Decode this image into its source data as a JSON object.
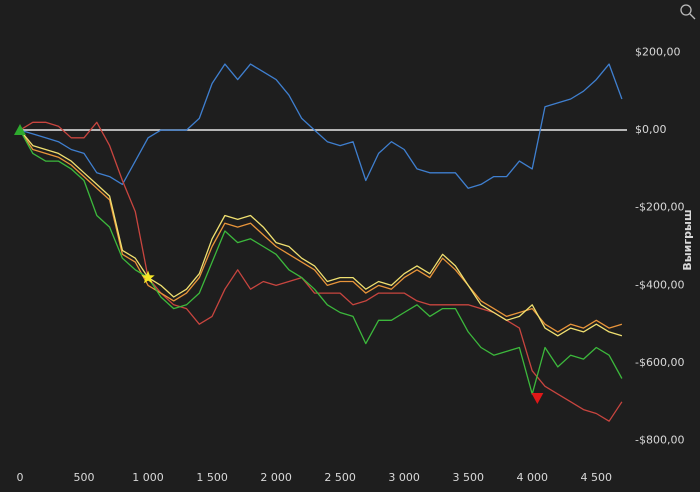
{
  "chart_data": {
    "type": "line",
    "y_label": "Выигрыш",
    "x": [
      0,
      100,
      200,
      300,
      400,
      500,
      600,
      700,
      800,
      900,
      1000,
      1100,
      1200,
      1300,
      1400,
      1500,
      1600,
      1700,
      1800,
      1900,
      2000,
      2100,
      2200,
      2300,
      2400,
      2500,
      2600,
      2700,
      2800,
      2900,
      3000,
      3100,
      3200,
      3300,
      3400,
      3500,
      3600,
      3700,
      3800,
      3900,
      4000,
      4100,
      4200,
      4300,
      4400,
      4500,
      4600,
      4700
    ],
    "series": [
      {
        "color": "#3f7fcf",
        "values": [
          0,
          -10,
          -20,
          -30,
          -50,
          -60,
          -110,
          -120,
          -140,
          -80,
          -20,
          0,
          0,
          0,
          30,
          120,
          170,
          130,
          170,
          150,
          130,
          90,
          30,
          0,
          -30,
          -40,
          -30,
          -130,
          -60,
          -30,
          -50,
          -100,
          -110,
          -110,
          -110,
          -150,
          -140,
          -120,
          -120,
          -80,
          -100,
          60,
          70,
          80,
          100,
          130,
          170,
          80
        ]
      },
      {
        "color": "#c8453f",
        "values": [
          0,
          20,
          20,
          10,
          -20,
          -20,
          20,
          -40,
          -130,
          -210,
          -380,
          -420,
          -450,
          -460,
          -500,
          -480,
          -410,
          -360,
          -410,
          -390,
          -400,
          -390,
          -380,
          -420,
          -420,
          -420,
          -450,
          -440,
          -420,
          -420,
          -420,
          -440,
          -450,
          -450,
          -450,
          -450,
          -460,
          -470,
          -490,
          -510,
          -620,
          -660,
          -680,
          -700,
          -720,
          -730,
          -750,
          -700
        ]
      },
      {
        "color": "#e8943a",
        "values": [
          0,
          -50,
          -60,
          -70,
          -90,
          -120,
          -150,
          -180,
          -320,
          -340,
          -400,
          -420,
          -440,
          -420,
          -380,
          -300,
          -240,
          -250,
          -240,
          -270,
          -300,
          -320,
          -340,
          -360,
          -400,
          -390,
          -390,
          -420,
          -400,
          -410,
          -380,
          -360,
          -380,
          -330,
          -360,
          -400,
          -440,
          -460,
          -480,
          -470,
          -460,
          -500,
          -520,
          -500,
          -510,
          -490,
          -510,
          -500
        ]
      },
      {
        "color": "#f0e070",
        "values": [
          0,
          -40,
          -50,
          -60,
          -80,
          -110,
          -140,
          -170,
          -310,
          -330,
          -380,
          -400,
          -430,
          -410,
          -370,
          -280,
          -220,
          -230,
          -220,
          -250,
          -290,
          -300,
          -330,
          -350,
          -390,
          -380,
          -380,
          -410,
          -390,
          -400,
          -370,
          -350,
          -370,
          -320,
          -350,
          -400,
          -450,
          -470,
          -490,
          -480,
          -450,
          -510,
          -530,
          -510,
          -520,
          -500,
          -520,
          -530
        ]
      },
      {
        "color": "#3cb83c",
        "values": [
          0,
          -60,
          -80,
          -80,
          -100,
          -130,
          -220,
          -250,
          -330,
          -360,
          -380,
          -430,
          -460,
          -450,
          -420,
          -340,
          -260,
          -290,
          -280,
          -300,
          -320,
          -360,
          -380,
          -410,
          -450,
          -470,
          -480,
          -550,
          -490,
          -490,
          -470,
          -450,
          -480,
          -460,
          -460,
          -520,
          -560,
          -580,
          -570,
          -560,
          -680,
          -560,
          -610,
          -580,
          -590,
          -560,
          -580,
          -640
        ]
      }
    ],
    "xlim": [
      0,
      4740
    ],
    "ylim": [
      -855,
      335
    ],
    "xticks": [
      0,
      500,
      {
        "value": 1000,
        "label": "1 000"
      },
      {
        "value": 1500,
        "label": "1 500"
      },
      {
        "value": 2000,
        "label": "2 000"
      },
      {
        "value": 2500,
        "label": "2 500"
      },
      {
        "value": 3000,
        "label": "3 000"
      },
      {
        "value": 3500,
        "label": "3 500"
      },
      {
        "value": 4000,
        "label": "4 000"
      },
      {
        "value": 4500,
        "label": "4 500"
      }
    ],
    "yticks": [
      {
        "value": 200,
        "label": "$200,00"
      },
      {
        "value": 0,
        "label": "$0,00"
      },
      {
        "value": -200,
        "label": "-$200,00"
      },
      {
        "value": -400,
        "label": "-$400,00"
      },
      {
        "value": -600,
        "label": "-$600,00"
      },
      {
        "value": -800,
        "label": "-$800,00"
      }
    ],
    "reference_line": 0,
    "markers": [
      {
        "x": 0,
        "y": 0,
        "shape": "triangle-up",
        "color": "#2eaa2e"
      },
      {
        "x": 1000,
        "y": -380,
        "shape": "star",
        "color": "#f5e626"
      },
      {
        "x": 4040,
        "y": -690,
        "shape": "triangle-down",
        "color": "#e01818"
      }
    ]
  }
}
